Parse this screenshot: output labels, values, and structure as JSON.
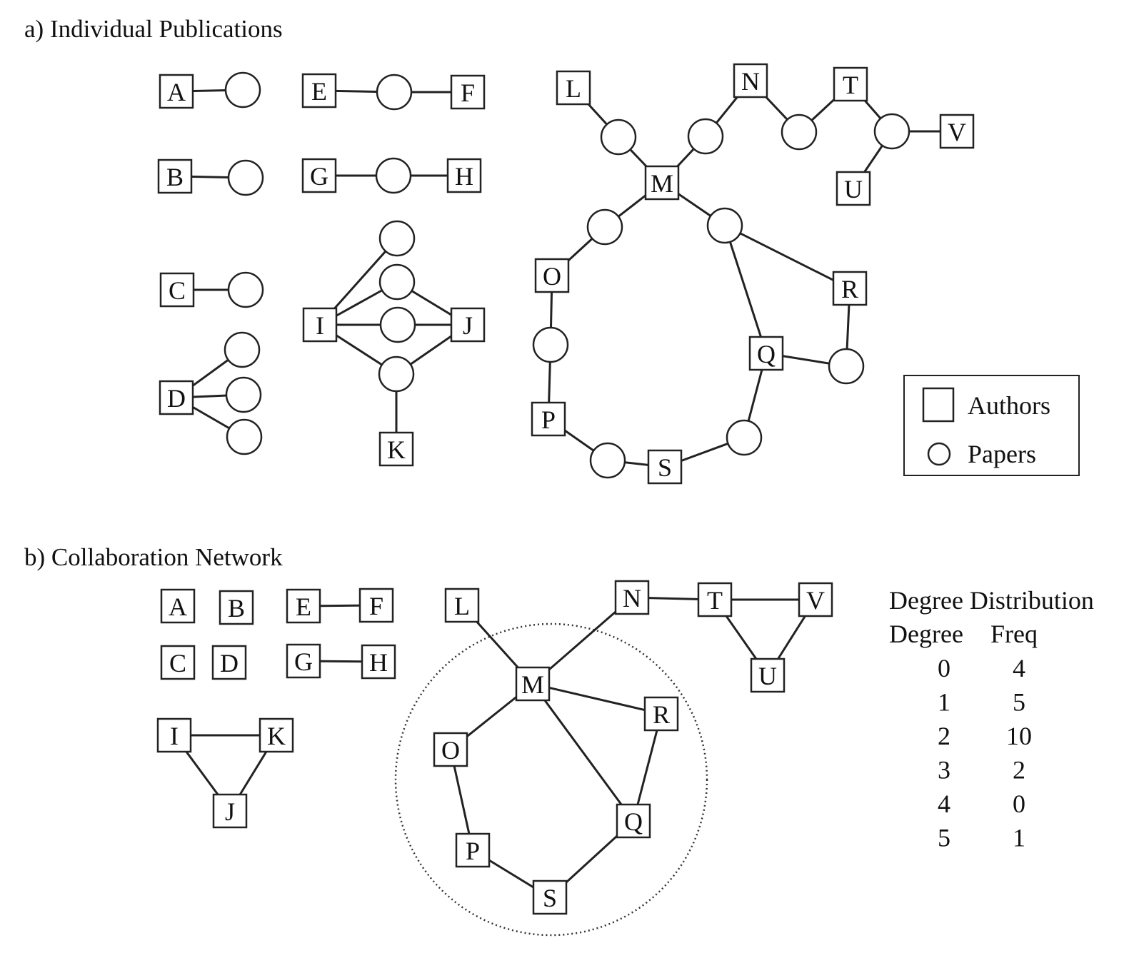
{
  "panel_a": {
    "title": "a) Individual Publications",
    "authors": [
      "A",
      "B",
      "C",
      "D",
      "E",
      "F",
      "G",
      "H",
      "I",
      "J",
      "K",
      "L",
      "M",
      "N",
      "O",
      "P",
      "Q",
      "R",
      "S",
      "T",
      "U",
      "V"
    ],
    "papers": [
      "a1",
      "b1",
      "c1",
      "d1",
      "d2",
      "d3",
      "ef",
      "gh",
      "i1",
      "ij1",
      "ij2",
      "ijk",
      "lm",
      "mn",
      "nt",
      "tuv",
      "mo",
      "mqr",
      "op",
      "ps",
      "qr",
      "qs"
    ],
    "edges": [
      [
        "A",
        "a1"
      ],
      [
        "B",
        "b1"
      ],
      [
        "C",
        "c1"
      ],
      [
        "D",
        "d1"
      ],
      [
        "D",
        "d2"
      ],
      [
        "D",
        "d3"
      ],
      [
        "E",
        "ef"
      ],
      [
        "ef",
        "F"
      ],
      [
        "G",
        "gh"
      ],
      [
        "gh",
        "H"
      ],
      [
        "I",
        "i1"
      ],
      [
        "I",
        "ij1"
      ],
      [
        "ij1",
        "J"
      ],
      [
        "I",
        "ij2"
      ],
      [
        "ij2",
        "J"
      ],
      [
        "I",
        "ijk"
      ],
      [
        "ijk",
        "J"
      ],
      [
        "ijk",
        "K"
      ],
      [
        "L",
        "lm"
      ],
      [
        "lm",
        "M"
      ],
      [
        "M",
        "mn"
      ],
      [
        "mn",
        "N"
      ],
      [
        "N",
        "nt"
      ],
      [
        "nt",
        "T"
      ],
      [
        "T",
        "tuv"
      ],
      [
        "tuv",
        "V"
      ],
      [
        "tuv",
        "U"
      ],
      [
        "M",
        "mo"
      ],
      [
        "mo",
        "O"
      ],
      [
        "M",
        "mqr"
      ],
      [
        "mqr",
        "R"
      ],
      [
        "mqr",
        "Q"
      ],
      [
        "O",
        "op"
      ],
      [
        "op",
        "P"
      ],
      [
        "P",
        "ps"
      ],
      [
        "ps",
        "S"
      ],
      [
        "R",
        "qr"
      ],
      [
        "Q",
        "qr"
      ],
      [
        "S",
        "qs"
      ],
      [
        "qs",
        "Q"
      ]
    ]
  },
  "legend": {
    "authors_label": "Authors",
    "papers_label": "Papers"
  },
  "panel_b": {
    "title": "b) Collaboration Network",
    "authors": [
      "A",
      "B",
      "C",
      "D",
      "E",
      "F",
      "G",
      "H",
      "I",
      "J",
      "K",
      "L",
      "M",
      "N",
      "O",
      "P",
      "Q",
      "R",
      "S",
      "T",
      "U",
      "V"
    ],
    "edges": [
      [
        "E",
        "F"
      ],
      [
        "G",
        "H"
      ],
      [
        "I",
        "K"
      ],
      [
        "I",
        "J"
      ],
      [
        "K",
        "J"
      ],
      [
        "L",
        "M"
      ],
      [
        "M",
        "N"
      ],
      [
        "N",
        "T"
      ],
      [
        "T",
        "V"
      ],
      [
        "T",
        "U"
      ],
      [
        "U",
        "V"
      ],
      [
        "M",
        "O"
      ],
      [
        "M",
        "R"
      ],
      [
        "M",
        "Q"
      ],
      [
        "R",
        "Q"
      ],
      [
        "O",
        "P"
      ],
      [
        "P",
        "S"
      ],
      [
        "S",
        "Q"
      ]
    ]
  },
  "degree_table": {
    "title": "Degree Distribution",
    "headers": [
      "Degree",
      "Freq"
    ],
    "rows": [
      [
        "0",
        "4"
      ],
      [
        "1",
        "5"
      ],
      [
        "2",
        "10"
      ],
      [
        "3",
        "2"
      ],
      [
        "4",
        "0"
      ],
      [
        "5",
        "1"
      ]
    ]
  }
}
